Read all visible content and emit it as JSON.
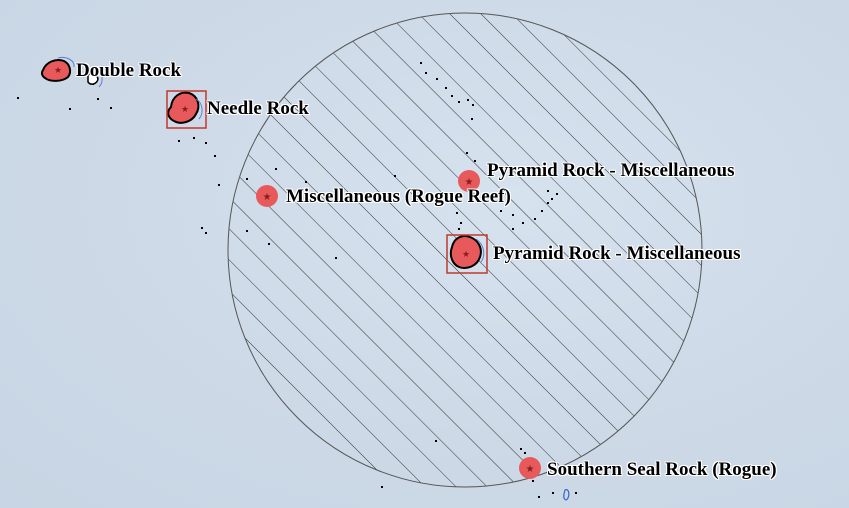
{
  "map": {
    "colors": {
      "water": "#cdd9e7",
      "feature_fill": "#e8595c",
      "selection_box": "#c0392b",
      "hatch": "#333333",
      "outline": "#000000",
      "label_halo": "#ffffff"
    },
    "features": [
      {
        "id": "double-rock",
        "label": "Double Rock",
        "icon": "star-icon",
        "selected": false
      },
      {
        "id": "needle-rock",
        "label": "Needle Rock",
        "icon": "star-icon",
        "selected": true
      },
      {
        "id": "pyramid-rock-misc-1",
        "label": "Pyramid Rock - Miscellaneous",
        "icon": "star-icon",
        "selected": false
      },
      {
        "id": "misc-rogue-reef",
        "label": "Miscellaneous (Rogue Reef)",
        "icon": "star-icon",
        "selected": false
      },
      {
        "id": "pyramid-rock-misc-2",
        "label": "Pyramid Rock - Miscellaneous",
        "icon": "star-icon",
        "selected": true
      },
      {
        "id": "southern-seal-rock",
        "label": "Southern Seal Rock (Rogue)",
        "icon": "star-icon",
        "selected": false
      }
    ],
    "buffer_zone": {
      "pattern": "diagonal-hatch",
      "shape": "circle"
    }
  }
}
